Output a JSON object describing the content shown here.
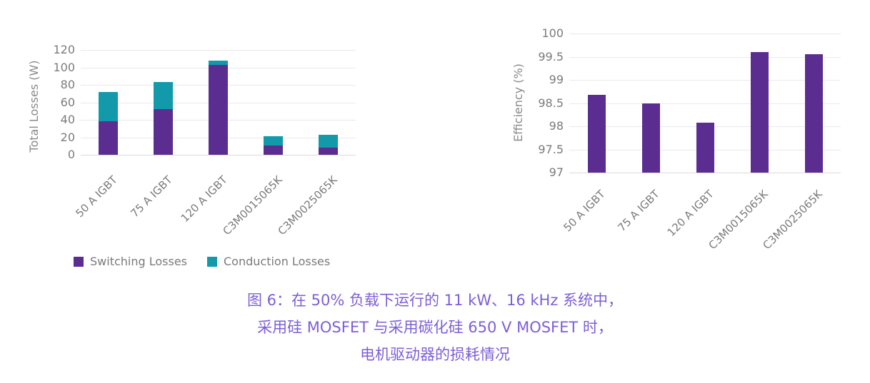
{
  "colors": {
    "purple": "#5B2D91",
    "teal": "#129AAB",
    "axis_text": "#7b7b7b",
    "gridline": "#e9e9e9",
    "baseline": "#d9d9d9",
    "caption": "#7D5FD7"
  },
  "chart_data": [
    {
      "type": "bar",
      "stacked": true,
      "title": "",
      "xlabel": "",
      "ylabel": "Total Losses (W)",
      "categories": [
        "50 A IGBT",
        "75 A IGBT",
        "120 A IGBT",
        "C3M0015065K",
        "C3M0025065K"
      ],
      "series": [
        {
          "name": "Switching Losses",
          "color": "#5B2D91",
          "values": [
            38,
            52,
            103,
            11,
            8
          ]
        },
        {
          "name": "Conduction Losses",
          "color": "#129AAB",
          "values": [
            34,
            31,
            5,
            10,
            15
          ]
        }
      ],
      "ylim": [
        0,
        120
      ],
      "yticks": [
        0,
        20,
        40,
        60,
        80,
        100,
        120
      ],
      "grid": true,
      "legend_position": "bottom"
    },
    {
      "type": "bar",
      "stacked": false,
      "title": "",
      "xlabel": "",
      "ylabel": "Efficiency (%)",
      "categories": [
        "50 A IGBT",
        "75 A IGBT",
        "120 A IGBT",
        "C3M0015065K",
        "C3M0025065K"
      ],
      "series": [
        {
          "name": "Efficiency",
          "color": "#5B2D91",
          "values": [
            98.67,
            98.5,
            98.07,
            99.6,
            99.55
          ]
        }
      ],
      "ylim": [
        97,
        100
      ],
      "yticks": [
        97,
        97.5,
        98,
        98.5,
        99,
        99.5,
        100
      ],
      "grid": true,
      "legend_position": "none"
    }
  ],
  "caption": {
    "lines": [
      "图 6：在 50% 负载下运行的 11 kW、16 kHz 系统中，",
      "采用硅 MOSFET 与采用碳化硅 650 V MOSFET 时，",
      "电机驱动器的损耗情况"
    ]
  }
}
